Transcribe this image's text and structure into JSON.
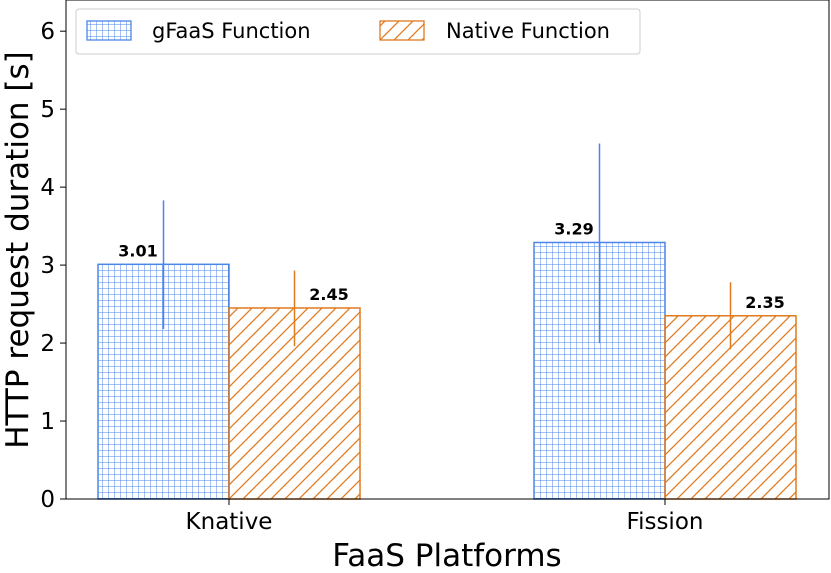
{
  "chart_data": {
    "type": "bar",
    "xlabel": "FaaS Platforms",
    "ylabel": "HTTP request duration [s]",
    "categories": [
      "Knative",
      "Fission"
    ],
    "ylim": [
      0,
      6.4
    ],
    "yticks": [
      0,
      1,
      2,
      3,
      4,
      5,
      6
    ],
    "grid": false,
    "legend_position": "top-left",
    "series": [
      {
        "name": "gFaaS Function",
        "values": [
          3.01,
          3.29
        ],
        "error_low": [
          2.18,
          2.0
        ],
        "error_high": [
          3.83,
          4.56
        ],
        "color": "#4a86e8",
        "pattern": "grid"
      },
      {
        "name": "Native Function",
        "values": [
          2.45,
          2.35
        ],
        "error_low": [
          1.96,
          1.92
        ],
        "error_high": [
          2.93,
          2.78
        ],
        "color": "#e07a1f",
        "pattern": "diagonal"
      }
    ],
    "value_labels": [
      [
        "3.01",
        "3.29"
      ],
      [
        "2.45",
        "2.35"
      ]
    ]
  }
}
